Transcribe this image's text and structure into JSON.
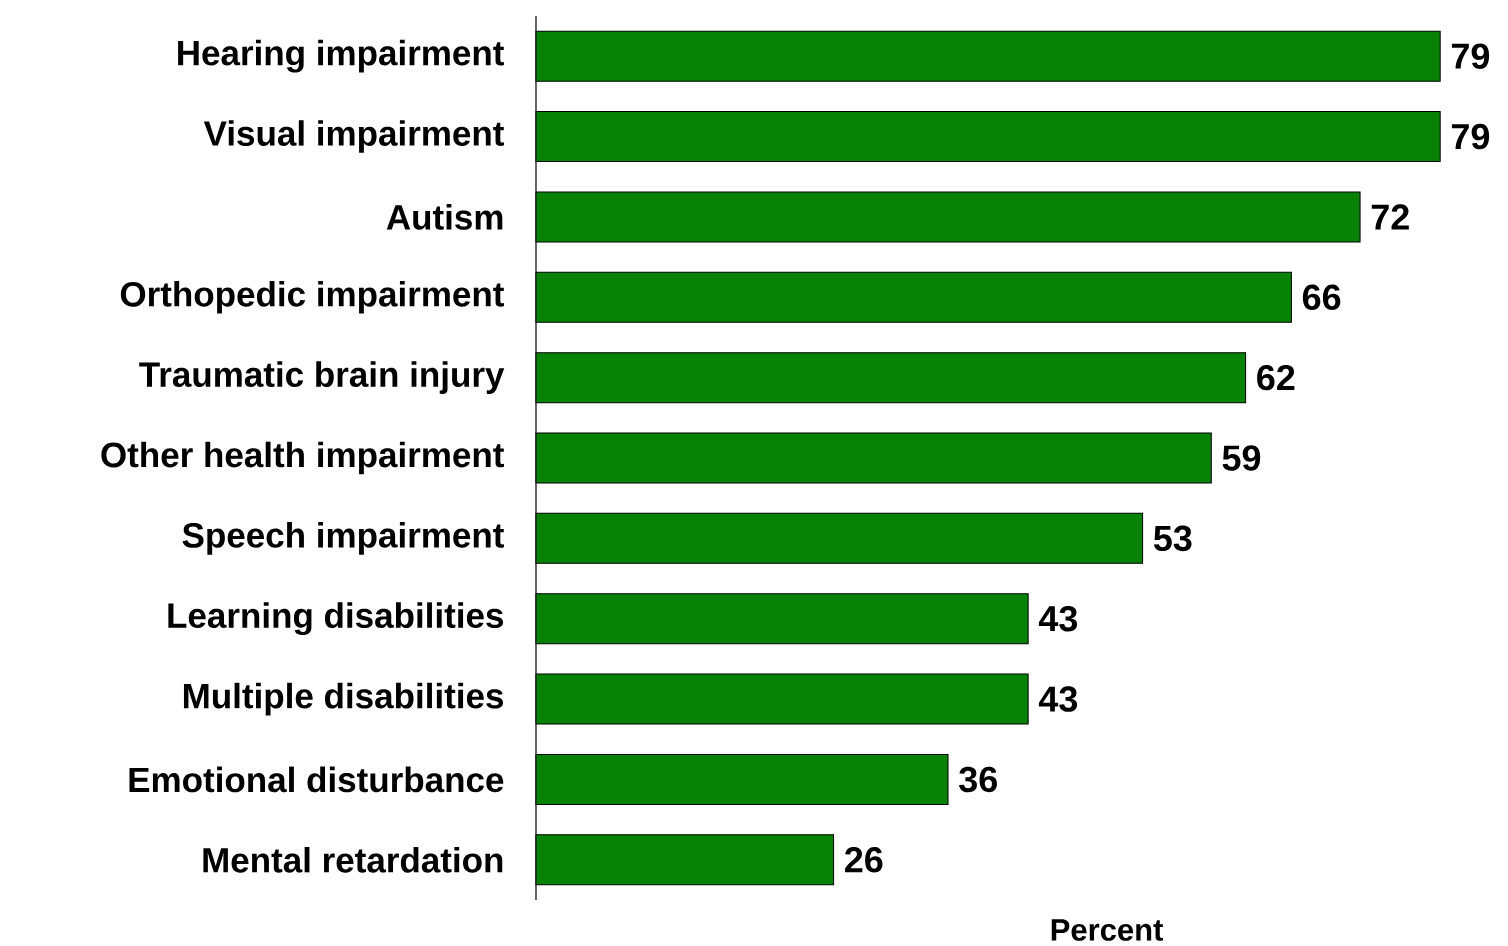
{
  "chart_data": {
    "type": "bar",
    "orientation": "horizontal",
    "xlabel": "Percent",
    "categories": [
      "Hearing impairment",
      "Visual impairment",
      "Autism",
      "Orthopedic impairment",
      "Traumatic brain injury",
      "Other health impairment",
      "Speech impairment",
      "Learning disabilities",
      "Multiple disabilities",
      "Emotional disturbance",
      "Mental retardation"
    ],
    "values": [
      79,
      79,
      72,
      66,
      62,
      59,
      53,
      43,
      43,
      36,
      26
    ],
    "color": "#078207",
    "data_labels": true
  }
}
